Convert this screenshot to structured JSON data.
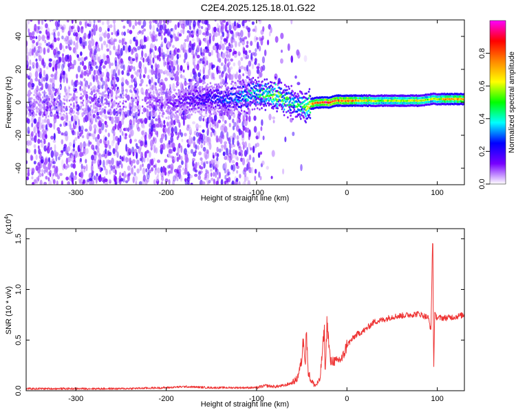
{
  "figure": {
    "title": "C2E4.2025.125.18.01.G22"
  },
  "chart_data": [
    {
      "type": "heatmap",
      "xlabel": "Height of straight line (km)",
      "ylabel": "Frequency (Hz)",
      "xlim": [
        -355,
        130
      ],
      "ylim": [
        -50,
        50
      ],
      "xticks": [
        -300,
        -200,
        -100,
        0,
        100
      ],
      "yticks": [
        -40,
        -20,
        0,
        20,
        40
      ],
      "grid": false,
      "colorbar": {
        "label": "Normalized spectral amplitude",
        "range": [
          0.0,
          1.0
        ],
        "ticks": [
          0.0,
          0.2,
          0.4,
          0.6,
          0.8
        ],
        "tick_labels": [
          "0.0",
          "0.2",
          "0.4",
          "0.6",
          "0.8"
        ],
        "colormap": [
          "#ffffff",
          "#7700ff",
          "#0000ff",
          "#00ffff",
          "#00ff00",
          "#ffff00",
          "#ff8800",
          "#ff0000",
          "#ff00ff"
        ]
      },
      "ridge": {
        "x": [
          -355,
          -200,
          -150,
          -120,
          -100,
          -90,
          -80,
          -70,
          -60,
          -50,
          -40,
          -30,
          -20,
          -10,
          0,
          20,
          40,
          60,
          80,
          95,
          110,
          130
        ],
        "y": [
          0,
          0,
          2,
          3,
          5,
          6,
          4,
          2,
          0,
          -3,
          -1,
          0,
          0,
          1,
          1,
          1,
          1,
          1,
          1,
          2,
          2,
          2
        ],
        "amplitude": [
          0.08,
          0.12,
          0.25,
          0.35,
          0.45,
          0.55,
          0.6,
          0.55,
          0.45,
          0.5,
          0.8,
          0.85,
          0.9,
          0.85,
          0.85,
          0.7,
          0.6,
          0.65,
          0.65,
          0.6,
          0.75,
          0.8
        ]
      }
    },
    {
      "type": "line",
      "xlabel": "Height of straight line (km)",
      "ylabel": "SNR (10 * v/v)",
      "y_multiplier": "(x10",
      "y_multiplier_exp": "4",
      "y_multiplier_close": ")",
      "xlim": [
        -355,
        130
      ],
      "ylim": [
        0.0,
        1.6
      ],
      "xticks": [
        -300,
        -200,
        -100,
        0,
        100
      ],
      "yticks": [
        0.0,
        0.5,
        1.0,
        1.5
      ],
      "ytick_labels": [
        "0.0",
        "0.5",
        "1.0",
        "1.5"
      ],
      "grid": false,
      "color": "#ee3333",
      "series": [
        {
          "x": [
            -355,
            -300,
            -250,
            -200,
            -180,
            -150,
            -120,
            -100,
            -90,
            -80,
            -70,
            -60,
            -55,
            -50,
            -48,
            -46,
            -45,
            -43,
            -40,
            -38,
            -35,
            -30,
            -25,
            -24,
            -22,
            -20,
            -18,
            -15,
            -12,
            -10,
            -5,
            0,
            5,
            10,
            20,
            30,
            40,
            50,
            60,
            70,
            80,
            85,
            90,
            93,
            95,
            96,
            97,
            100,
            110,
            120,
            130
          ],
          "y": [
            0.02,
            0.02,
            0.02,
            0.03,
            0.04,
            0.03,
            0.03,
            0.03,
            0.05,
            0.04,
            0.05,
            0.08,
            0.12,
            0.3,
            0.55,
            0.25,
            0.62,
            0.2,
            0.1,
            0.08,
            0.05,
            0.1,
            0.6,
            0.15,
            0.7,
            0.45,
            0.28,
            0.3,
            0.28,
            0.3,
            0.32,
            0.45,
            0.5,
            0.55,
            0.6,
            0.68,
            0.7,
            0.73,
            0.74,
            0.75,
            0.76,
            0.74,
            0.72,
            0.6,
            1.6,
            0.15,
            0.75,
            0.72,
            0.72,
            0.73,
            0.75
          ]
        }
      ]
    }
  ]
}
